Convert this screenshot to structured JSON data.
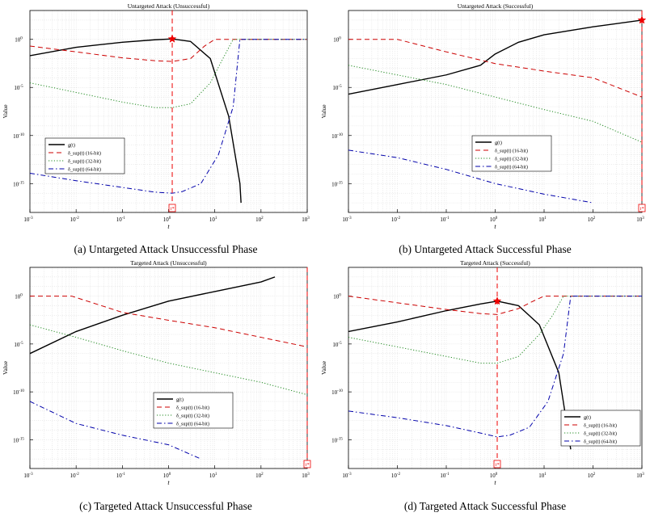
{
  "figure": {
    "captions": [
      "(a) Untargeted Attack Unsuccessful Phase",
      "(b) Untargeted Attack Successful Phase",
      "(c) Targeted Attack Unsuccessful Phase",
      "(d) Targeted Attack Successful Phase"
    ]
  },
  "chart_data": [
    {
      "type": "line",
      "title": "Untargeted Attack (Unsuccessful)",
      "xlabel": "t",
      "ylabel": "Value",
      "xscale": "log",
      "yscale": "log",
      "xlim": [
        0.001,
        1000
      ],
      "ylim": [
        1e-18,
        1000.0
      ],
      "xticks": [
        "10^{-3}",
        "10^{-2}",
        "10^{-1}",
        "10^{0}",
        "10^{1}",
        "10^{2}",
        "10^{3}"
      ],
      "yticks": [
        "10^{-15}",
        "10^{-10}",
        "10^{-5}",
        "10^{0}"
      ],
      "grid": true,
      "legend_position": "lower-left",
      "marker": {
        "t": 1.2,
        "value": 1.1
      },
      "vline": {
        "t": 1.2,
        "label": "t*"
      },
      "series": [
        {
          "name": "g(t)",
          "style": "solid",
          "color": "#000000",
          "x": [
            0.001,
            0.01,
            0.1,
            0.5,
            1.2,
            3,
            8,
            20,
            35,
            37
          ],
          "y": [
            0.02,
            0.15,
            0.5,
            0.9,
            1.1,
            0.6,
            0.01,
            1e-08,
            1e-15,
            1e-17
          ]
        },
        {
          "name": "δ_sup(t) (16-bit)",
          "style": "dashed",
          "color": "#cc0000",
          "x": [
            0.001,
            0.01,
            0.1,
            0.5,
            1.2,
            3,
            6,
            10,
            1000
          ],
          "y": [
            0.2,
            0.05,
            0.012,
            0.006,
            0.005,
            0.01,
            0.2,
            1,
            1
          ]
        },
        {
          "name": "δ_sup(t) (32-bit)",
          "style": "dotted",
          "color": "#228b22",
          "x": [
            0.001,
            0.01,
            0.1,
            0.5,
            1.2,
            3,
            8,
            15,
            25,
            1000
          ],
          "y": [
            3e-05,
            3e-06,
            3e-07,
            8e-08,
            8e-08,
            2e-07,
            3e-05,
            0.01,
            1,
            1
          ]
        },
        {
          "name": "δ_sup(t) (64-bit)",
          "style": "dashdot",
          "color": "#0000aa",
          "x": [
            0.001,
            0.01,
            0.1,
            0.5,
            1.2,
            2,
            5,
            12,
            25,
            35,
            1000
          ],
          "y": [
            1.2e-14,
            2e-15,
            4e-16,
            1.3e-16,
            1e-16,
            1.5e-16,
            1e-15,
            1e-12,
            1e-07,
            1,
            1
          ]
        }
      ]
    },
    {
      "type": "line",
      "title": "Untargeted Attack (Successful)",
      "xlabel": "t",
      "ylabel": "Value",
      "xscale": "log",
      "yscale": "log",
      "xlim": [
        0.001,
        1000
      ],
      "ylim": [
        1e-18,
        1000.0
      ],
      "xticks": [
        "10^{-3}",
        "10^{-2}",
        "10^{-1}",
        "10^{0}",
        "10^{1}",
        "10^{2}",
        "10^{3}"
      ],
      "yticks": [
        "10^{-15}",
        "10^{-10}",
        "10^{-5}",
        "10^{0}"
      ],
      "grid": true,
      "legend_position": "center",
      "marker": {
        "t": 1000,
        "value": 100
      },
      "vline": {
        "t": 1000,
        "label": "t*"
      },
      "series": [
        {
          "name": "g(t)",
          "style": "solid",
          "color": "#000000",
          "x": [
            0.001,
            0.01,
            0.1,
            0.5,
            1,
            3,
            10,
            100,
            1000
          ],
          "y": [
            2e-06,
            2e-05,
            0.0002,
            0.002,
            0.03,
            0.5,
            3,
            20,
            100
          ]
        },
        {
          "name": "δ_sup(t) (16-bit)",
          "style": "dashed",
          "color": "#cc0000",
          "x": [
            0.001,
            0.003,
            0.01,
            0.1,
            1,
            10,
            100,
            1000
          ],
          "y": [
            1,
            1,
            1,
            0.05,
            0.003,
            0.0005,
            0.0001,
            1e-06
          ]
        },
        {
          "name": "δ_sup(t) (32-bit)",
          "style": "dotted",
          "color": "#228b22",
          "x": [
            0.001,
            0.01,
            0.1,
            1,
            10,
            100,
            1000
          ],
          "y": [
            0.002,
            0.0002,
            2e-05,
            1e-06,
            5e-08,
            3e-09,
            2e-11
          ]
        },
        {
          "name": "δ_sup(t) (64-bit)",
          "style": "dashdot",
          "color": "#0000aa",
          "x": [
            0.001,
            0.01,
            0.1,
            1,
            10,
            100
          ],
          "y": [
            3e-12,
            5e-13,
            3e-14,
            1e-15,
            8e-17,
            1e-17
          ]
        }
      ]
    },
    {
      "type": "line",
      "title": "Targeted Attack (Unsuccessful)",
      "xlabel": "t",
      "ylabel": "Value",
      "xscale": "log",
      "yscale": "log",
      "xlim": [
        0.001,
        1000
      ],
      "ylim": [
        1e-18,
        1000.0
      ],
      "xticks": [
        "10^{-3}",
        "10^{-2}",
        "10^{-1}",
        "10^{0}",
        "10^{1}",
        "10^{2}",
        "10^{3}"
      ],
      "yticks": [
        "10^{-15}",
        "10^{-10}",
        "10^{-5}",
        "10^{0}"
      ],
      "grid": true,
      "legend_position": "center",
      "marker": null,
      "vline": {
        "t": 1000,
        "label": "t*"
      },
      "series": [
        {
          "name": "g(t)",
          "style": "solid",
          "color": "#000000",
          "x": [
            0.001,
            0.01,
            0.1,
            1,
            10,
            100,
            200
          ],
          "y": [
            1e-06,
            0.0002,
            0.01,
            0.3,
            3,
            30,
            100
          ]
        },
        {
          "name": "δ_sup(t) (16-bit)",
          "style": "dashed",
          "color": "#cc0000",
          "x": [
            0.001,
            0.008,
            0.1,
            1,
            10,
            100,
            1000
          ],
          "y": [
            1,
            1,
            0.02,
            0.003,
            0.0005,
            5e-05,
            5e-06
          ]
        },
        {
          "name": "δ_sup(t) (32-bit)",
          "style": "dotted",
          "color": "#228b22",
          "x": [
            0.001,
            0.01,
            0.1,
            1,
            10,
            100,
            1000
          ],
          "y": [
            0.001,
            5e-05,
            2e-06,
            1e-07,
            1e-08,
            1e-09,
            5e-11
          ]
        },
        {
          "name": "δ_sup(t) (64-bit)",
          "style": "dashdot",
          "color": "#0000aa",
          "x": [
            0.001,
            0.01,
            0.1,
            1,
            5
          ],
          "y": [
            1e-11,
            5e-14,
            3e-15,
            3e-16,
            1e-17
          ]
        }
      ]
    },
    {
      "type": "line",
      "title": "Targeted Attack (Successful)",
      "xlabel": "t",
      "ylabel": "Value",
      "xscale": "log",
      "yscale": "log",
      "xlim": [
        0.001,
        1000
      ],
      "ylim": [
        1e-18,
        1000.0
      ],
      "xticks": [
        "10^{-3}",
        "10^{-2}",
        "10^{-1}",
        "10^{0}",
        "10^{1}",
        "10^{2}",
        "10^{3}"
      ],
      "yticks": [
        "10^{-15}",
        "10^{-10}",
        "10^{-5}",
        "10^{0}"
      ],
      "grid": true,
      "legend_position": "lower-right",
      "marker": {
        "t": 1.1,
        "value": 0.3
      },
      "vline": {
        "t": 1.1,
        "label": "t*"
      },
      "series": [
        {
          "name": "g(t)",
          "style": "solid",
          "color": "#000000",
          "x": [
            0.001,
            0.01,
            0.1,
            0.5,
            1.1,
            3,
            8,
            20,
            35
          ],
          "y": [
            0.0002,
            0.002,
            0.03,
            0.15,
            0.3,
            0.1,
            0.001,
            1e-08,
            1e-16
          ]
        },
        {
          "name": "δ_sup(t) (16-bit)",
          "style": "dashed",
          "color": "#cc0000",
          "x": [
            0.001,
            0.01,
            0.1,
            0.5,
            1.1,
            3,
            6,
            10,
            1000
          ],
          "y": [
            1,
            0.2,
            0.04,
            0.015,
            0.012,
            0.05,
            0.3,
            1,
            1
          ]
        },
        {
          "name": "δ_sup(t) (32-bit)",
          "style": "dotted",
          "color": "#228b22",
          "x": [
            0.001,
            0.01,
            0.1,
            0.5,
            1.1,
            3,
            8,
            15,
            25,
            1000
          ],
          "y": [
            5e-05,
            5e-06,
            5e-07,
            1e-07,
            1e-07,
            5e-07,
            0.0001,
            0.01,
            1,
            1
          ]
        },
        {
          "name": "δ_sup(t) (64-bit)",
          "style": "dashdot",
          "color": "#0000aa",
          "x": [
            0.001,
            0.01,
            0.1,
            0.5,
            1.1,
            2,
            5,
            12,
            25,
            35,
            1000
          ],
          "y": [
            1e-12,
            2e-13,
            3e-14,
            5e-15,
            2e-15,
            3e-15,
            2e-14,
            1e-11,
            1e-06,
            1,
            1
          ]
        }
      ]
    }
  ]
}
